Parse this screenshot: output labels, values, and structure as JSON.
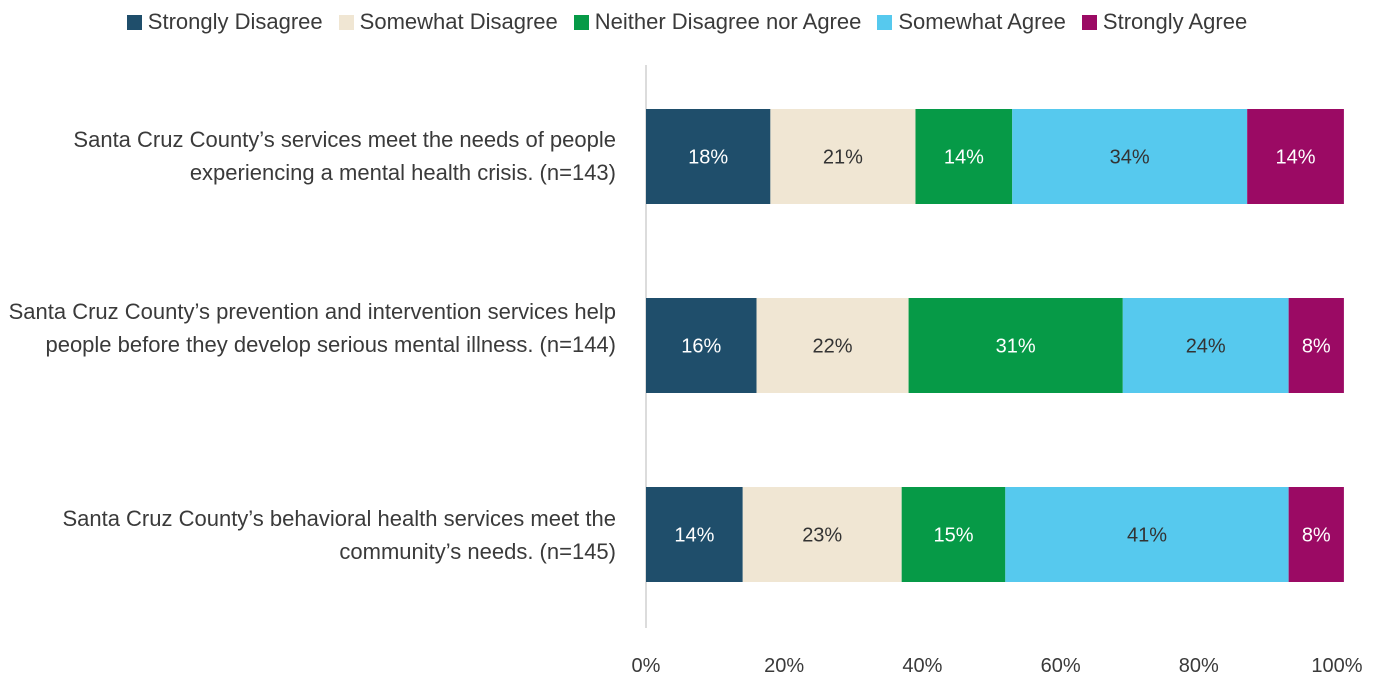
{
  "chart_data": {
    "type": "bar",
    "orientation": "horizontal",
    "stacked": true,
    "title": "",
    "xlabel": "",
    "ylabel": "",
    "xlim": [
      0,
      100
    ],
    "x_ticks": [
      "0%",
      "20%",
      "40%",
      "60%",
      "80%",
      "100%"
    ],
    "grid": false,
    "legend_position": "top",
    "categories": [
      "Santa Cruz County’s services meet the needs of people experiencing a mental health crisis. (n=143)",
      "Santa Cruz County’s prevention and intervention services help people before they develop serious mental illness. (n=144)",
      "Santa Cruz County’s behavioral health services meet the community’s needs. (n=145)"
    ],
    "series": [
      {
        "name": "Strongly Disagree",
        "color": "#1f4e6b",
        "label_color": "#ffffff",
        "values": [
          18,
          16,
          14
        ],
        "labels": [
          "18%",
          "16%",
          "14%"
        ]
      },
      {
        "name": "Somewhat Disagree",
        "color": "#f0e6d3",
        "label_color": "#333333",
        "values": [
          21,
          22,
          23
        ],
        "labels": [
          "21%",
          "22%",
          "23%"
        ]
      },
      {
        "name": "Neither Disagree nor Agree",
        "color": "#069a47",
        "label_color": "#ffffff",
        "values": [
          14,
          31,
          15
        ],
        "labels": [
          "14%",
          "31%",
          "15%"
        ]
      },
      {
        "name": "Somewhat Agree",
        "color": "#56c9ee",
        "label_color": "#333333",
        "values": [
          34,
          24,
          41
        ],
        "labels": [
          "34%",
          "24%",
          "41%"
        ]
      },
      {
        "name": "Strongly Agree",
        "color": "#9b0a64",
        "label_color": "#ffffff",
        "values": [
          14,
          8,
          8
        ],
        "labels": [
          "14%",
          "8%",
          "8%"
        ]
      }
    ]
  }
}
